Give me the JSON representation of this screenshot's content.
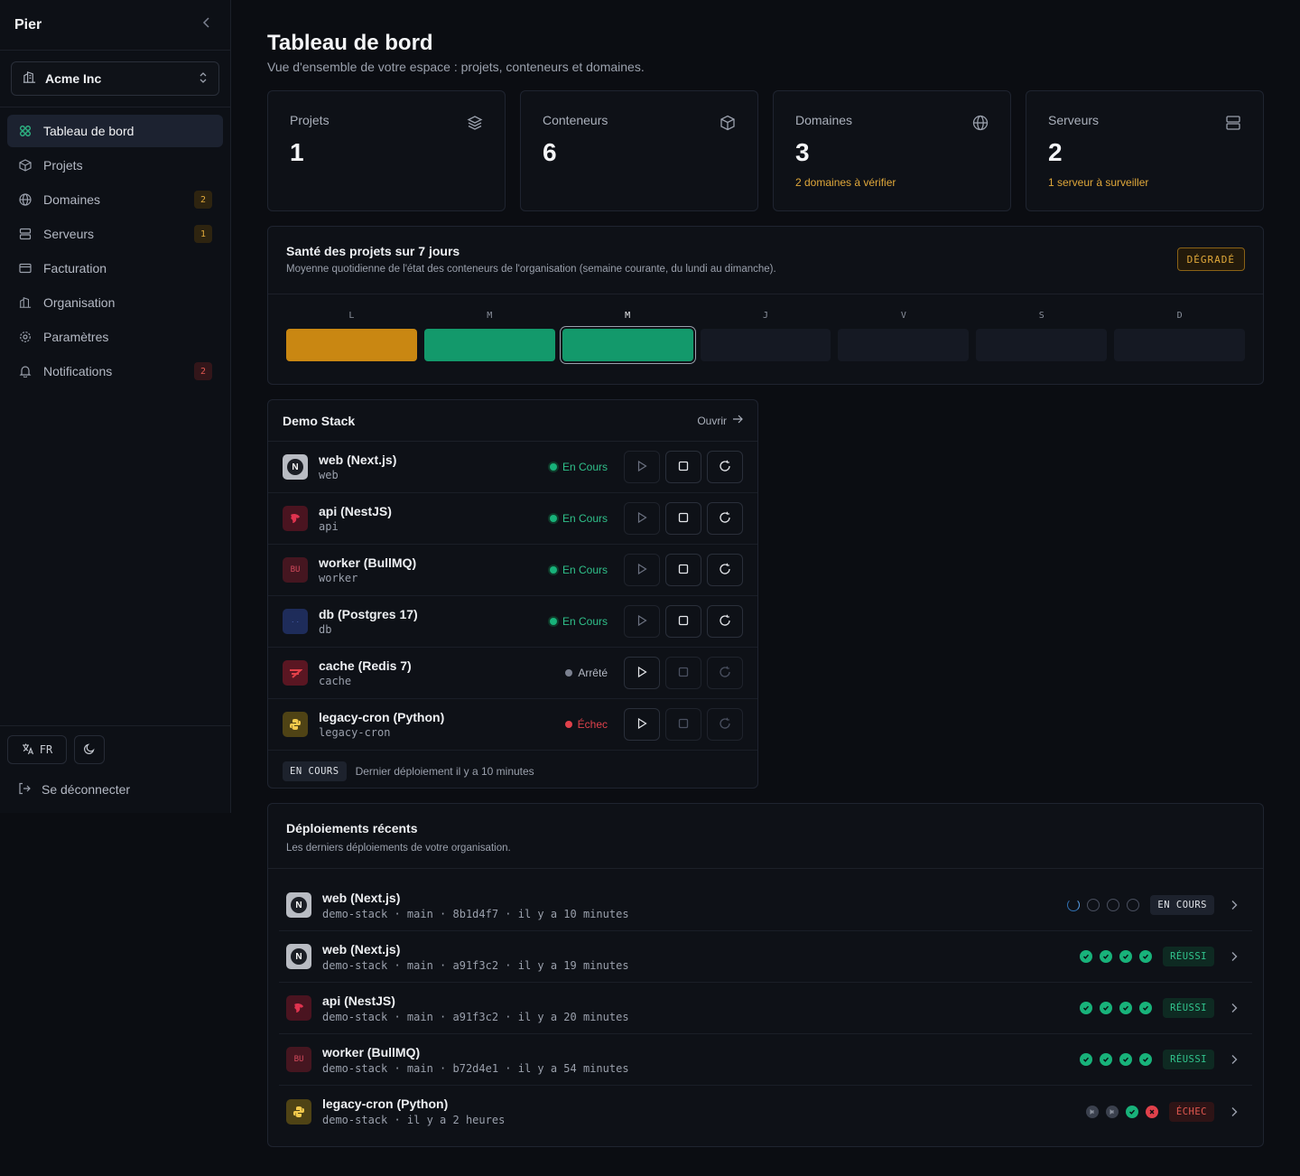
{
  "app": {
    "brand": "Pier"
  },
  "org": {
    "name": "Acme Inc"
  },
  "nav": [
    {
      "label": "Tableau de bord",
      "icon": "dashboard-icon",
      "active": true,
      "badge": null
    },
    {
      "label": "Projets",
      "icon": "box-icon",
      "badge": null
    },
    {
      "label": "Domaines",
      "icon": "globe-icon",
      "badge": "2",
      "badge_tone": "warn"
    },
    {
      "label": "Serveurs",
      "icon": "server-icon",
      "badge": "1",
      "badge_tone": "warn"
    },
    {
      "label": "Facturation",
      "icon": "credit-card-icon",
      "badge": null
    },
    {
      "label": "Organisation",
      "icon": "building-icon",
      "badge": null
    },
    {
      "label": "Paramètres",
      "icon": "gear-icon",
      "badge": null
    },
    {
      "label": "Notifications",
      "icon": "bell-icon",
      "badge": "2",
      "badge_tone": "red"
    }
  ],
  "footer": {
    "lang": "FR",
    "logout": "Se déconnecter"
  },
  "page": {
    "title": "Tableau de bord",
    "subtitle": "Vue d'ensemble de votre espace : projets, conteneurs et domaines."
  },
  "stats": [
    {
      "label": "Projets",
      "value": "1",
      "note": "",
      "icon": "layers-icon"
    },
    {
      "label": "Conteneurs",
      "value": "6",
      "note": "",
      "icon": "cube-icon"
    },
    {
      "label": "Domaines",
      "value": "3",
      "note": "2 domaines à vérifier",
      "icon": "globe-icon"
    },
    {
      "label": "Serveurs",
      "value": "2",
      "note": "1 serveur à surveiller",
      "icon": "server-icon"
    }
  ],
  "health": {
    "title": "Santé des projets sur 7 jours",
    "subtitle": "Moyenne quotidienne de l'état des conteneurs de l'organisation (semaine courante, du lundi au dimanche).",
    "badge": "DÉGRADÉ",
    "days": [
      {
        "letter": "L",
        "state": "degraded",
        "color": "#c98712"
      },
      {
        "letter": "M",
        "state": "healthy",
        "color": "#13996b"
      },
      {
        "letter": "M",
        "state": "healthy",
        "color": "#13996b",
        "today": true
      },
      {
        "letter": "J",
        "state": "none",
        "color": "#151923"
      },
      {
        "letter": "V",
        "state": "none",
        "color": "#151923"
      },
      {
        "letter": "S",
        "state": "none",
        "color": "#151923"
      },
      {
        "letter": "D",
        "state": "none",
        "color": "#151923"
      }
    ]
  },
  "stack": {
    "title": "Demo Stack",
    "open_label": "Ouvrir",
    "services": [
      {
        "name": "web (Next.js)",
        "id": "web",
        "logo": "nextjs-logo",
        "status": "En Cours",
        "tone": "running"
      },
      {
        "name": "api (NestJS)",
        "id": "api",
        "logo": "nestjs-logo",
        "status": "En Cours",
        "tone": "running"
      },
      {
        "name": "worker (BullMQ)",
        "id": "worker",
        "logo": "bullmq-logo",
        "status": "En Cours",
        "tone": "running"
      },
      {
        "name": "db (Postgres 17)",
        "id": "db",
        "logo": "postgres-logo",
        "status": "En Cours",
        "tone": "running"
      },
      {
        "name": "cache (Redis 7)",
        "id": "cache",
        "logo": "redis-logo",
        "status": "Arrêté",
        "tone": "stopped"
      },
      {
        "name": "legacy-cron (Python)",
        "id": "legacy-cron",
        "logo": "python-logo",
        "status": "Échec",
        "tone": "failed"
      }
    ],
    "footer_badge": "EN COURS",
    "footer_text": "Dernier déploiement il y a 10 minutes"
  },
  "deploys": {
    "title": "Déploiements récents",
    "subtitle": "Les derniers déploiements de votre organisation.",
    "items": [
      {
        "name": "web (Next.js)",
        "meta": "demo-stack · main · 8b1d4f7 · il y a 10 minutes",
        "logo": "nextjs-logo",
        "steps": [
          "run",
          "pending",
          "pending",
          "pending"
        ],
        "status": "EN COURS",
        "tone": "neutral"
      },
      {
        "name": "web (Next.js)",
        "meta": "demo-stack · main · a91f3c2 · il y a 19 minutes",
        "logo": "nextjs-logo",
        "steps": [
          "ok",
          "ok",
          "ok",
          "ok"
        ],
        "status": "RÉUSSI",
        "tone": "green"
      },
      {
        "name": "api (NestJS)",
        "meta": "demo-stack · main · a91f3c2 · il y a 20 minutes",
        "logo": "nestjs-logo",
        "steps": [
          "ok",
          "ok",
          "ok",
          "ok"
        ],
        "status": "RÉUSSI",
        "tone": "green"
      },
      {
        "name": "worker (BullMQ)",
        "meta": "demo-stack · main · b72d4e1 · il y a 54 minutes",
        "logo": "bullmq-logo",
        "steps": [
          "ok",
          "ok",
          "ok",
          "ok"
        ],
        "status": "RÉUSSI",
        "tone": "green"
      },
      {
        "name": "legacy-cron (Python)",
        "meta": "demo-stack · il y a 2 heures",
        "logo": "python-logo",
        "steps": [
          "skip",
          "skip",
          "ok",
          "fail"
        ],
        "status": "ÉCHEC",
        "tone": "red"
      }
    ]
  },
  "colors": {
    "accent_green": "#13996b",
    "warn": "#e0a83a",
    "danger": "#e0574f"
  }
}
